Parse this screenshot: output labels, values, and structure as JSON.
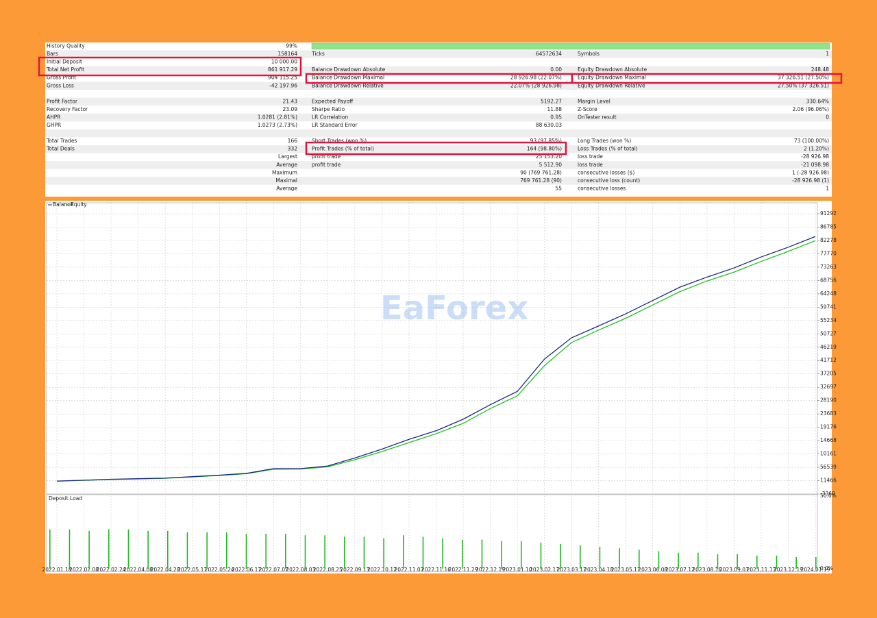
{
  "table": {
    "rows": [
      [
        "History Quality",
        "99%",
        null,
        null,
        null,
        null
      ],
      [
        "Bars",
        "158164",
        "Ticks",
        "64572634",
        "Symbols",
        "1"
      ],
      [
        "Initial Deposit",
        "10 000.00",
        null,
        null,
        null,
        null
      ],
      [
        "Total Net Profit",
        "861 917.29",
        "Balance Drawdown Absolute",
        "0.00",
        "Equity Drawdown Absolute",
        "248.48"
      ],
      [
        "Gross Profit",
        "904 115.25",
        "Balance Drawdown Maximal",
        "28 926.98 (22.07%)",
        "Equity Drawdown Maximal",
        "37 326.51 (27.50%)"
      ],
      [
        "Gross Loss",
        "-42 197.96",
        "Balance Drawdown Relative",
        "22.07% (28 926.98)",
        "Equity Drawdown Relative",
        "27.50% (37 326.51)"
      ],
      [
        null,
        null,
        null,
        null,
        null,
        null
      ],
      [
        "Profit Factor",
        "21.43",
        "Expected Payoff",
        "5192.27",
        "Margin Level",
        "330.64%"
      ],
      [
        "Recovery Factor",
        "23.09",
        "Sharpe Ratio",
        "11.88",
        "Z-Score",
        "2.06 (96.06%)"
      ],
      [
        "AHPR",
        "1.0281 (2.81%)",
        "LR Correlation",
        "0.95",
        "OnTester result",
        "0"
      ],
      [
        "GHPR",
        "1.0273 (2.73%)",
        "LR Standard Error",
        "88 630.03",
        null,
        null
      ],
      [
        null,
        null,
        null,
        null,
        null,
        null
      ],
      [
        "Total Trades",
        "166",
        "Short Trades (won %)",
        "93 (97.85%)",
        "Long Trades (won %)",
        "73 (100.00%)"
      ],
      [
        "Total Deals",
        "332",
        "Profit Trades (% of total)",
        "164 (98.80%)",
        "Loss Trades (% of total)",
        "2 (1.20%)"
      ],
      [
        "Largest",
        null,
        "profit trade",
        "25 153.20",
        "loss trade",
        "-28 926.98"
      ],
      [
        "Average",
        null,
        "profit trade",
        "5 512.90",
        "loss trade",
        "-21 098.98"
      ],
      [
        "Maximum",
        null,
        null,
        "90 (769 761.28)",
        "consecutive losses ($)",
        "1 (-28 926.98)"
      ],
      [
        "Maximal",
        null,
        null,
        "769 761.28 (90)",
        "consecutive loss (count)",
        "-28 926.98 (1)"
      ],
      [
        "Average",
        null,
        null,
        "55",
        "consecutive losses",
        "1"
      ]
    ]
  },
  "watermark": "EaForex",
  "chart_data": [
    {
      "type": "line",
      "categories": [
        "2022.01.18",
        "2022.02.08",
        "2022.02.24",
        "2022.04.08",
        "2022.04.28",
        "2022.05.11",
        "2022.05.24",
        "2022.06.17",
        "2022.07.07",
        "2022.08.03",
        "2022.08.25",
        "2022.09.13",
        "2022.10.12",
        "2022.11.07",
        "2022.11.16",
        "2022.11.29",
        "2022.12.19",
        "2023.01.10",
        "2023.02.17",
        "2023.03.17",
        "2023.04.18",
        "2023.05.17",
        "2023.06.08",
        "2023.07.12",
        "2023.08.16",
        "2023.09.07",
        "2023.11.13",
        "2023.12.19",
        "2024.01.19"
      ],
      "series": [
        {
          "name": "Balance",
          "color": "#1a2a80",
          "values": [
            10000,
            13000,
            16000,
            18000,
            20000,
            25000,
            30000,
            36000,
            52000,
            52000,
            61000,
            88000,
            118000,
            151000,
            180000,
            219000,
            268000,
            313000,
            422000,
            494000,
            534000,
            575000,
            620000,
            665000,
            699000,
            730000,
            767000,
            800000,
            836000
          ]
        },
        {
          "name": "Equity",
          "color": "#22c022",
          "values": [
            9500,
            12500,
            15500,
            17500,
            19500,
            24000,
            29000,
            35000,
            50000,
            50500,
            58000,
            82000,
            110000,
            140000,
            170000,
            205000,
            255000,
            298000,
            400000,
            478000,
            520000,
            560000,
            605000,
            650000,
            686000,
            716000,
            752000,
            786000,
            822000
          ]
        }
      ],
      "ylim": [
        -33607,
        950000
      ],
      "yticks": [
        {
          "value": 912920,
          "label": "91292"
        },
        {
          "value": 867850,
          "label": "86785"
        },
        {
          "value": 822780,
          "label": "82278"
        },
        {
          "value": 777700,
          "label": "77770"
        },
        {
          "value": 732630,
          "label": "73263"
        },
        {
          "value": 687560,
          "label": "68756"
        },
        {
          "value": 642480,
          "label": "64248"
        },
        {
          "value": 597410,
          "label": "59741"
        },
        {
          "value": 552340,
          "label": "55234"
        },
        {
          "value": 507270,
          "label": "50727"
        },
        {
          "value": 462190,
          "label": "46219"
        },
        {
          "value": 417120,
          "label": "41712"
        },
        {
          "value": 372050,
          "label": "37205"
        },
        {
          "value": 326970,
          "label": "32697"
        },
        {
          "value": 281900,
          "label": "28190"
        },
        {
          "value": 236830,
          "label": "23683"
        },
        {
          "value": 191760,
          "label": "19176"
        },
        {
          "value": 146680,
          "label": "14668"
        },
        {
          "value": 101610,
          "label": "10161"
        },
        56539,
        11466,
        {
          "value": -33607,
          "label": "-3360"
        }
      ],
      "grid": true
    },
    {
      "type": "bar",
      "title": "Deposit Load",
      "color": "#22b822",
      "values": [
        27,
        27,
        26,
        27,
        27,
        26,
        26,
        25,
        25,
        25,
        24,
        24,
        24,
        23,
        23,
        22,
        22,
        21,
        23,
        22,
        21,
        20,
        20,
        19,
        19,
        18,
        17,
        16,
        15,
        14,
        13,
        12,
        11,
        11,
        10,
        10,
        9,
        9,
        8,
        8
      ],
      "ylim": [
        0,
        50
      ],
      "yticks": [
        {
          "value": 50,
          "label": "50.0%"
        },
        {
          "value": 0,
          "label": "0.0%"
        }
      ]
    }
  ]
}
